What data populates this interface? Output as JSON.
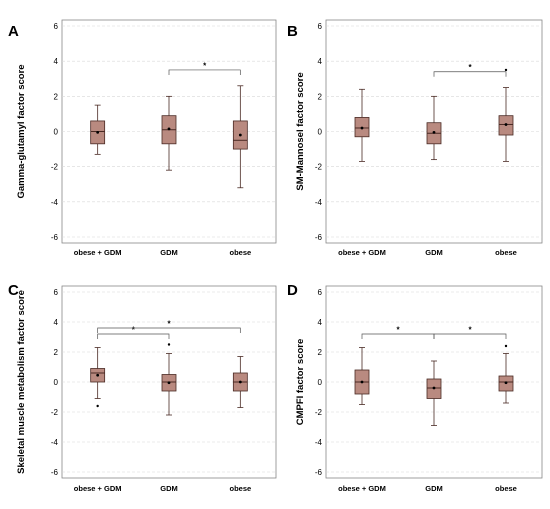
{
  "chart_data": [
    {
      "type": "box",
      "panel": "A",
      "ylabel": "Gamma-glutamyl factor score",
      "ylim": [
        -6,
        6
      ],
      "yticks": [
        -6,
        -4,
        -2,
        0,
        2,
        4,
        6
      ],
      "grid": true,
      "categories": [
        "obese + GDM",
        "GDM",
        "obese"
      ],
      "boxes": [
        {
          "min": -1.3,
          "q1": -0.7,
          "median": 0.0,
          "q3": 0.6,
          "max": 1.5,
          "mean": -0.05,
          "outliers": []
        },
        {
          "min": -2.2,
          "q1": -0.7,
          "median": 0.1,
          "q3": 0.9,
          "max": 2.0,
          "mean": 0.15,
          "outliers": []
        },
        {
          "min": -3.2,
          "q1": -1.0,
          "median": -0.5,
          "q3": 0.6,
          "max": 2.6,
          "mean": -0.2,
          "outliers": []
        }
      ],
      "significance": [
        {
          "from": 1,
          "to": 2,
          "label": "*"
        }
      ]
    },
    {
      "type": "box",
      "panel": "B",
      "ylabel": "SM-Mannosel factor score",
      "ylim": [
        -6,
        6
      ],
      "yticks": [
        -6,
        -4,
        -2,
        0,
        2,
        4,
        6
      ],
      "grid": true,
      "categories": [
        "obese + GDM",
        "GDM",
        "obese"
      ],
      "boxes": [
        {
          "min": -1.7,
          "q1": -0.3,
          "median": 0.2,
          "q3": 0.8,
          "max": 2.4,
          "mean": 0.2,
          "outliers": []
        },
        {
          "min": -1.6,
          "q1": -0.7,
          "median": -0.1,
          "q3": 0.5,
          "max": 2.0,
          "mean": -0.05,
          "outliers": []
        },
        {
          "min": -1.7,
          "q1": -0.2,
          "median": 0.4,
          "q3": 0.9,
          "max": 2.5,
          "mean": 0.4,
          "outliers": [
            3.5
          ]
        }
      ],
      "significance": [
        {
          "from": 1,
          "to": 2,
          "label": "*"
        }
      ]
    },
    {
      "type": "box",
      "panel": "C",
      "ylabel": "Skeletal muscle metabolism factor score",
      "ylim": [
        -6,
        6
      ],
      "yticks": [
        -6,
        -4,
        -2,
        0,
        2,
        4,
        6
      ],
      "grid": true,
      "categories": [
        "obese + GDM",
        "GDM",
        "obese"
      ],
      "boxes": [
        {
          "min": -1.1,
          "q1": 0.0,
          "median": 0.6,
          "q3": 0.9,
          "max": 2.3,
          "mean": 0.45,
          "outliers": [
            -1.6
          ]
        },
        {
          "min": -2.2,
          "q1": -0.6,
          "median": 0.0,
          "q3": 0.5,
          "max": 1.9,
          "mean": -0.05,
          "outliers": [
            2.5
          ]
        },
        {
          "min": -1.7,
          "q1": -0.6,
          "median": 0.0,
          "q3": 0.6,
          "max": 1.7,
          "mean": 0.0,
          "outliers": []
        }
      ],
      "significance": [
        {
          "from": 0,
          "to": 1,
          "label": "*"
        },
        {
          "from": 0,
          "to": 2,
          "label": "*"
        }
      ]
    },
    {
      "type": "box",
      "panel": "D",
      "ylabel": "CMPFI factor score",
      "ylim": [
        -6,
        6
      ],
      "yticks": [
        -6,
        -4,
        -2,
        0,
        2,
        4,
        6
      ],
      "grid": true,
      "categories": [
        "obese + GDM",
        "GDM",
        "obese"
      ],
      "boxes": [
        {
          "min": -1.5,
          "q1": -0.8,
          "median": 0.0,
          "q3": 0.8,
          "max": 2.3,
          "mean": 0.0,
          "outliers": []
        },
        {
          "min": -2.9,
          "q1": -1.1,
          "median": -0.4,
          "q3": 0.2,
          "max": 1.4,
          "mean": -0.4,
          "outliers": []
        },
        {
          "min": -1.4,
          "q1": -0.6,
          "median": 0.0,
          "q3": 0.4,
          "max": 1.9,
          "mean": -0.05,
          "outliers": [
            2.4
          ]
        }
      ],
      "significance": [
        {
          "from": 0,
          "to": 1,
          "label": "*"
        },
        {
          "from": 1,
          "to": 2,
          "label": "*"
        }
      ]
    }
  ],
  "colors": {
    "box_fill": "#b98a80",
    "box_stroke": "#4a2a24",
    "grid": "#d8d8d8",
    "axis": "#888888",
    "ink": "#000000"
  }
}
